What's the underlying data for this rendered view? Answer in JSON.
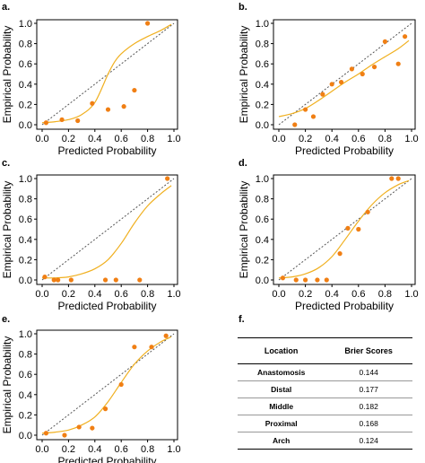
{
  "panel_labels": [
    "a.",
    "b.",
    "c.",
    "d.",
    "e.",
    "f."
  ],
  "colors": {
    "point": "#f07f14",
    "curve": "#f0b020",
    "diagonal": "#555555"
  },
  "chart_data": [
    {
      "type": "scatter",
      "label": "a.",
      "xlabel": "Predicted Probability",
      "ylabel": "Empirical Probability",
      "xlim": [
        0.0,
        1.0
      ],
      "ylim": [
        0.0,
        1.0
      ],
      "xticks": [
        "0.0",
        "0.2",
        "0.4",
        "0.6",
        "0.8",
        "1.0"
      ],
      "yticks": [
        "0.0",
        "0.2",
        "0.4",
        "0.6",
        "0.8",
        "1.0"
      ],
      "points": {
        "x": [
          0.03,
          0.15,
          0.27,
          0.38,
          0.5,
          0.62,
          0.7,
          0.8
        ],
        "y": [
          0.02,
          0.05,
          0.04,
          0.21,
          0.15,
          0.18,
          0.34,
          1.0
        ]
      },
      "curve": {
        "x": [
          0.0,
          0.1,
          0.2,
          0.3,
          0.4,
          0.5,
          0.55,
          0.6,
          0.7,
          0.8,
          0.9,
          0.98
        ],
        "y": [
          0.02,
          0.03,
          0.05,
          0.1,
          0.22,
          0.5,
          0.62,
          0.7,
          0.8,
          0.87,
          0.93,
          0.99
        ]
      }
    },
    {
      "type": "scatter",
      "label": "b.",
      "xlabel": "Predicted Probability",
      "ylabel": "Empirical Probability",
      "xlim": [
        0.0,
        1.0
      ],
      "ylim": [
        0.0,
        1.0
      ],
      "xticks": [
        "0.0",
        "0.2",
        "0.4",
        "0.6",
        "0.8",
        "1.0"
      ],
      "yticks": [
        "0.0",
        "0.2",
        "0.4",
        "0.6",
        "0.8",
        "1.0"
      ],
      "points": {
        "x": [
          0.12,
          0.2,
          0.26,
          0.33,
          0.4,
          0.47,
          0.55,
          0.63,
          0.72,
          0.8,
          0.9,
          0.95
        ],
        "y": [
          0.0,
          0.15,
          0.08,
          0.3,
          0.4,
          0.42,
          0.55,
          0.5,
          0.57,
          0.82,
          0.6,
          0.87
        ]
      },
      "curve": {
        "x": [
          0.0,
          0.1,
          0.2,
          0.3,
          0.4,
          0.5,
          0.6,
          0.7,
          0.8,
          0.9,
          0.98
        ],
        "y": [
          0.08,
          0.11,
          0.16,
          0.24,
          0.33,
          0.42,
          0.5,
          0.59,
          0.67,
          0.75,
          0.83
        ]
      }
    },
    {
      "type": "scatter",
      "label": "c.",
      "xlabel": "Predicted Probability",
      "ylabel": "Empirical Probability",
      "xlim": [
        0.0,
        1.0
      ],
      "ylim": [
        0.0,
        1.0
      ],
      "xticks": [
        "0.0",
        "0.2",
        "0.4",
        "0.6",
        "0.8",
        "1.0"
      ],
      "yticks": [
        "0.0",
        "0.2",
        "0.4",
        "0.6",
        "0.8",
        "1.0"
      ],
      "points": {
        "x": [
          0.02,
          0.09,
          0.12,
          0.22,
          0.48,
          0.56,
          0.74,
          0.95
        ],
        "y": [
          0.03,
          0.0,
          0.0,
          0.0,
          0.0,
          0.0,
          0.0,
          1.0
        ]
      },
      "curve": {
        "x": [
          0.0,
          0.1,
          0.2,
          0.3,
          0.4,
          0.5,
          0.6,
          0.7,
          0.8,
          0.9,
          0.98
        ],
        "y": [
          0.02,
          0.02,
          0.03,
          0.06,
          0.11,
          0.2,
          0.36,
          0.56,
          0.73,
          0.85,
          0.93
        ]
      }
    },
    {
      "type": "scatter",
      "label": "d.",
      "xlabel": "Predicted Probability",
      "ylabel": "Empirical Probability",
      "xlim": [
        0.0,
        1.0
      ],
      "ylim": [
        0.0,
        1.0
      ],
      "xticks": [
        "0.0",
        "0.2",
        "0.4",
        "0.6",
        "0.8",
        "1.0"
      ],
      "yticks": [
        "0.0",
        "0.2",
        "0.4",
        "0.6",
        "0.8",
        "1.0"
      ],
      "points": {
        "x": [
          0.03,
          0.13,
          0.2,
          0.29,
          0.36,
          0.46,
          0.52,
          0.6,
          0.67,
          0.85,
          0.9
        ],
        "y": [
          0.02,
          0.0,
          0.0,
          0.0,
          0.0,
          0.26,
          0.51,
          0.5,
          0.67,
          1.0,
          1.0
        ]
      },
      "curve": {
        "x": [
          0.0,
          0.1,
          0.2,
          0.3,
          0.4,
          0.5,
          0.6,
          0.7,
          0.8,
          0.9,
          0.98
        ],
        "y": [
          0.02,
          0.03,
          0.06,
          0.12,
          0.23,
          0.4,
          0.58,
          0.74,
          0.86,
          0.94,
          0.98
        ]
      }
    },
    {
      "type": "scatter",
      "label": "e.",
      "xlabel": "Predicted Probability",
      "ylabel": "Empirical Probability",
      "xlim": [
        0.0,
        1.0
      ],
      "ylim": [
        0.0,
        1.0
      ],
      "xticks": [
        "0.0",
        "0.2",
        "0.4",
        "0.6",
        "0.8",
        "1.0"
      ],
      "yticks": [
        "0.0",
        "0.2",
        "0.4",
        "0.6",
        "0.8",
        "1.0"
      ],
      "points": {
        "x": [
          0.03,
          0.17,
          0.28,
          0.38,
          0.48,
          0.6,
          0.7,
          0.83,
          0.94
        ],
        "y": [
          0.02,
          0.0,
          0.08,
          0.07,
          0.26,
          0.5,
          0.87,
          0.87,
          0.98
        ]
      },
      "curve": {
        "x": [
          0.0,
          0.1,
          0.2,
          0.3,
          0.4,
          0.5,
          0.6,
          0.7,
          0.8,
          0.9,
          0.98
        ],
        "y": [
          0.02,
          0.03,
          0.05,
          0.1,
          0.18,
          0.33,
          0.52,
          0.7,
          0.83,
          0.92,
          0.97
        ]
      }
    },
    {
      "type": "table",
      "label": "f.",
      "columns": [
        "Location",
        "Brier Scores"
      ],
      "rows": [
        [
          "Anastomosis",
          "0.144"
        ],
        [
          "Distal",
          "0.177"
        ],
        [
          "Middle",
          "0.182"
        ],
        [
          "Proximal",
          "0.168"
        ],
        [
          "Arch",
          "0.124"
        ]
      ]
    }
  ]
}
